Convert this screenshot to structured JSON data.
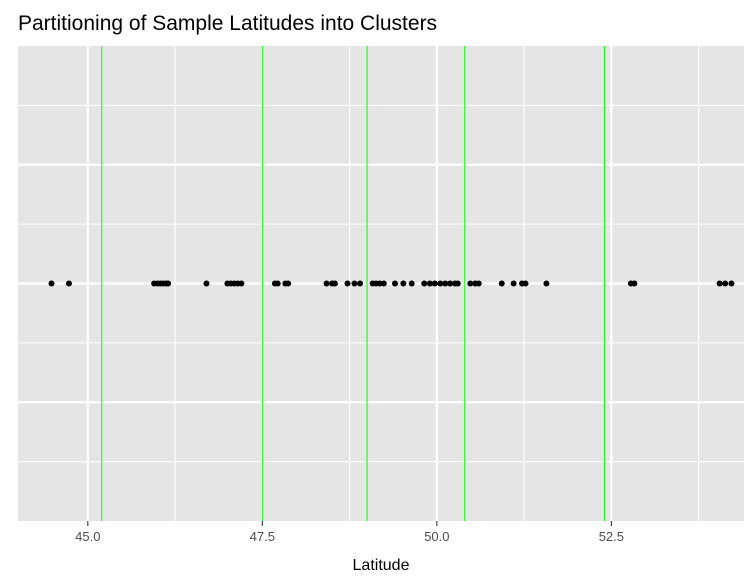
{
  "chart_data": {
    "type": "scatter",
    "title": "Partitioning of Sample Latitudes into Clusters",
    "xlabel": "Latitude",
    "ylabel": "",
    "xlim": [
      44.0,
      54.4
    ],
    "ylim": [
      -1,
      1
    ],
    "x_ticks": [
      45.0,
      47.5,
      50.0,
      52.5
    ],
    "x_tick_labels": [
      "45.0",
      "47.5",
      "50.0",
      "52.5"
    ],
    "grid": true,
    "series": [
      {
        "values_x": [
          44.48,
          44.73,
          45.95,
          46.0,
          46.04,
          46.08,
          46.12,
          46.15,
          46.7,
          47.0,
          47.05,
          47.1,
          47.15,
          47.2,
          47.68,
          47.72,
          47.83,
          47.87,
          48.42,
          48.5,
          48.54,
          48.72,
          48.82,
          48.9,
          49.08,
          49.13,
          49.18,
          49.24,
          49.4,
          49.52,
          49.64,
          49.82,
          49.9,
          49.97,
          50.05,
          50.12,
          50.19,
          50.26,
          50.3,
          50.48,
          50.55,
          50.6,
          50.93,
          51.1,
          51.22,
          51.27,
          51.57,
          52.78,
          52.83,
          54.05,
          54.13,
          54.22
        ],
        "values_y": [
          0,
          0,
          0,
          0,
          0,
          0,
          0,
          0,
          0,
          0,
          0,
          0,
          0,
          0,
          0,
          0,
          0,
          0,
          0,
          0,
          0,
          0,
          0,
          0,
          0,
          0,
          0,
          0,
          0,
          0,
          0,
          0,
          0,
          0,
          0,
          0,
          0,
          0,
          0,
          0,
          0,
          0,
          0,
          0,
          0,
          0,
          0,
          0,
          0,
          0,
          0,
          0
        ],
        "color": "#000000"
      }
    ],
    "cluster_boundaries": [
      45.2,
      47.5,
      49.0,
      50.4,
      52.4
    ],
    "boundary_color": "#00ff00",
    "panel_background": "#e5e5e5",
    "grid_color": "#ffffff"
  }
}
